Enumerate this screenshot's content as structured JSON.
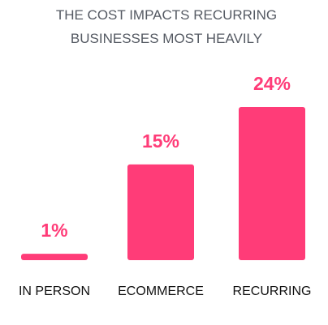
{
  "chart_data": {
    "type": "bar",
    "title": "THE COST IMPACTS RECURRING BUSINESSES MOST HEAVILY",
    "categories": [
      "IN PERSON",
      "ECOMMERCE",
      "RECURRING"
    ],
    "values": [
      1,
      15,
      24
    ],
    "value_labels": [
      "1%",
      "15%",
      "24%"
    ],
    "color": "#ff3c78"
  }
}
